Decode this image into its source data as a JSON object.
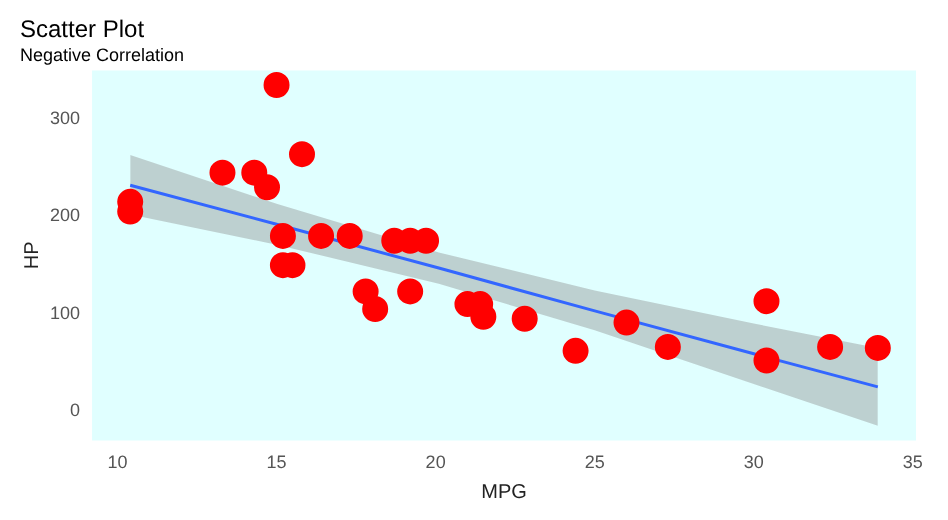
{
  "chart_data": {
    "type": "scatter",
    "title": "Scatter Plot",
    "subtitle": "Negative Correlation",
    "xlabel": "MPG",
    "ylabel": "HP",
    "xlim": [
      9.2,
      35.1
    ],
    "ylim": [
      -30,
      350
    ],
    "xticks": [
      10,
      15,
      20,
      25,
      30,
      35
    ],
    "yticks": [
      0,
      100,
      200,
      300
    ],
    "grid": false,
    "legend": false,
    "series": [
      {
        "color": "#ff0000",
        "marker": "circle",
        "x": [
          21.0,
          21.4,
          18.7,
          18.1,
          14.3,
          24.4,
          22.8,
          19.2,
          17.8,
          16.4,
          17.3,
          15.2,
          10.4,
          10.4,
          14.7,
          32.4,
          30.4,
          33.9,
          21.5,
          15.5,
          15.2,
          13.3,
          19.2,
          27.3,
          26.0,
          30.4,
          15.8,
          19.7,
          15.0
        ],
        "values": [
          110,
          110,
          175,
          105,
          245,
          62,
          95,
          123,
          123,
          180,
          180,
          180,
          205,
          215,
          230,
          66,
          52,
          65,
          97,
          150,
          150,
          245,
          175,
          66,
          91,
          113,
          264,
          175,
          335
        ]
      },
      {
        "type": "line",
        "color": "#3366ff",
        "marker": "none",
        "x": [
          10.4,
          15,
          20.1,
          25,
          30,
          33.9
        ],
        "values": [
          232,
          192,
          147,
          103,
          59,
          25
        ],
        "lower": [
          202,
          171,
          131,
          83,
          28,
          -15
        ],
        "upper": [
          263,
          213,
          163,
          124,
          90,
          65
        ]
      }
    ]
  }
}
